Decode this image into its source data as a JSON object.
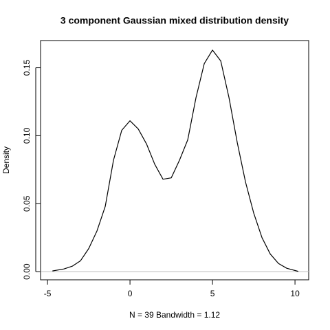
{
  "chart_data": {
    "type": "line",
    "title": "3 component Gaussian mixed distribution density",
    "xlabel": "N = 39   Bandwidth = 1.12",
    "ylabel": "Density",
    "x": [
      -4.7,
      -4,
      -3.5,
      -3,
      -2.5,
      -2,
      -1.5,
      -1,
      -0.5,
      0,
      0.5,
      1,
      1.5,
      2,
      2.5,
      3,
      3.5,
      4,
      4.5,
      5,
      5.5,
      6,
      6.5,
      7,
      7.5,
      8,
      8.5,
      9,
      9.5,
      10.2
    ],
    "series": [
      {
        "color": "#000000",
        "values": [
          0.0005,
          0.002,
          0.004,
          0.008,
          0.017,
          0.03,
          0.048,
          0.082,
          0.104,
          0.111,
          0.105,
          0.094,
          0.079,
          0.068,
          0.069,
          0.082,
          0.097,
          0.128,
          0.153,
          0.163,
          0.155,
          0.128,
          0.095,
          0.066,
          0.043,
          0.025,
          0.013,
          0.006,
          0.0025,
          0.0002
        ]
      }
    ],
    "xlim": [
      -5.42,
      10.83
    ],
    "ylim": [
      -0.006,
      0.17
    ],
    "xticks": [
      -5,
      0,
      5,
      10
    ],
    "yticks": [
      {
        "value": 0,
        "label": "0.00"
      },
      0.05,
      {
        "value": 0.1,
        "label": "0.10"
      },
      0.15
    ],
    "zero_line_color": "#bebebe"
  }
}
